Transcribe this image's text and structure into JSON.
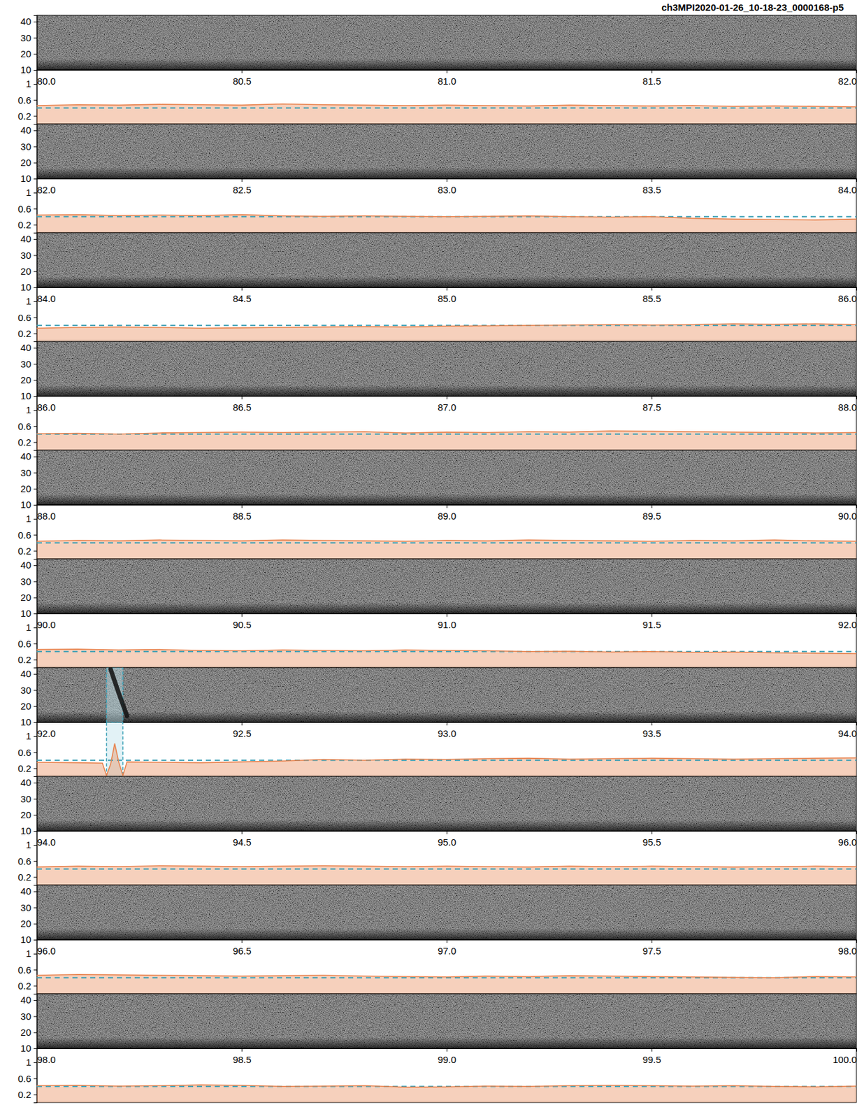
{
  "chart_data": [
    {
      "type": "line",
      "title": "ch3MPI2020-01-26_10-18-23_0000168-p5",
      "xlim": [
        80,
        82
      ],
      "xticks": [
        {
          "value": 80,
          "label": "80.0"
        },
        {
          "value": 80.5,
          "label": "80.5"
        },
        {
          "value": 81,
          "label": "81.0"
        },
        {
          "value": 81.5,
          "label": "81.5"
        },
        {
          "value": 82,
          "label": "82.0"
        }
      ],
      "ylim": [
        0,
        1.35
      ],
      "yticks": [
        0.2,
        0.6,
        1
      ],
      "spectrogram_ylim": [
        10,
        44
      ],
      "spectrogram_yticks": [
        10,
        20,
        30,
        40
      ],
      "threshold": 0.4,
      "x": [
        80,
        80.1,
        80.2,
        80.3,
        80.4,
        80.5,
        80.6,
        80.7,
        80.8,
        80.9,
        81,
        81.1,
        81.2,
        81.3,
        81.4,
        81.5,
        81.6,
        81.7,
        81.8,
        81.9,
        82
      ],
      "series": [
        {
          "color": "#e8834e",
          "values": [
            0.46,
            0.48,
            0.47,
            0.49,
            0.48,
            0.47,
            0.5,
            0.48,
            0.47,
            0.46,
            0.47,
            0.46,
            0.45,
            0.47,
            0.46,
            0.45,
            0.46,
            0.44,
            0.45,
            0.44,
            0.43
          ]
        }
      ]
    },
    {
      "type": "line",
      "xlim": [
        82,
        84
      ],
      "xticks": [
        {
          "value": 82,
          "label": "82.0"
        },
        {
          "value": 82.5,
          "label": "82.5"
        },
        {
          "value": 83,
          "label": "83.0"
        },
        {
          "value": 83.5,
          "label": "83.5"
        },
        {
          "value": 84,
          "label": "84.0"
        }
      ],
      "ylim": [
        0,
        1.35
      ],
      "yticks": [
        0.2,
        0.6,
        1
      ],
      "spectrogram_ylim": [
        10,
        44
      ],
      "spectrogram_yticks": [
        10,
        20,
        30,
        40
      ],
      "threshold": 0.4,
      "x": [
        82,
        82.1,
        82.2,
        82.3,
        82.4,
        82.5,
        82.6,
        82.7,
        82.8,
        82.9,
        83,
        83.1,
        83.2,
        83.3,
        83.4,
        83.5,
        83.6,
        83.7,
        83.8,
        83.9,
        84
      ],
      "series": [
        {
          "color": "#e8834e",
          "values": [
            0.44,
            0.45,
            0.43,
            0.44,
            0.43,
            0.45,
            0.42,
            0.41,
            0.42,
            0.41,
            0.4,
            0.41,
            0.42,
            0.4,
            0.39,
            0.4,
            0.36,
            0.34,
            0.33,
            0.32,
            0.34
          ]
        }
      ]
    },
    {
      "type": "line",
      "xlim": [
        84,
        86
      ],
      "xticks": [
        {
          "value": 84,
          "label": "84.0"
        },
        {
          "value": 84.5,
          "label": "84.5"
        },
        {
          "value": 85,
          "label": "85.0"
        },
        {
          "value": 85.5,
          "label": "85.5"
        },
        {
          "value": 86,
          "label": "86.0"
        }
      ],
      "ylim": [
        0,
        1.35
      ],
      "yticks": [
        0.2,
        0.6,
        1
      ],
      "spectrogram_ylim": [
        10,
        44
      ],
      "spectrogram_yticks": [
        10,
        20,
        30,
        40
      ],
      "threshold": 0.4,
      "x": [
        84,
        84.1,
        84.2,
        84.3,
        84.4,
        84.5,
        84.6,
        84.7,
        84.8,
        84.9,
        85,
        85.1,
        85.2,
        85.3,
        85.4,
        85.5,
        85.6,
        85.7,
        85.8,
        85.9,
        86
      ],
      "series": [
        {
          "color": "#e8834e",
          "values": [
            0.33,
            0.35,
            0.36,
            0.35,
            0.33,
            0.34,
            0.35,
            0.36,
            0.37,
            0.36,
            0.38,
            0.39,
            0.4,
            0.41,
            0.42,
            0.41,
            0.42,
            0.44,
            0.43,
            0.44,
            0.42
          ]
        }
      ]
    },
    {
      "type": "line",
      "xlim": [
        86,
        88
      ],
      "xticks": [
        {
          "value": 86,
          "label": "86.0"
        },
        {
          "value": 86.5,
          "label": "86.5"
        },
        {
          "value": 87,
          "label": "87.0"
        },
        {
          "value": 87.5,
          "label": "87.5"
        },
        {
          "value": 88,
          "label": "88.0"
        }
      ],
      "ylim": [
        0,
        1.35
      ],
      "yticks": [
        0.2,
        0.6,
        1
      ],
      "spectrogram_ylim": [
        10,
        44
      ],
      "spectrogram_yticks": [
        10,
        20,
        30,
        40
      ],
      "threshold": 0.4,
      "x": [
        86,
        86.1,
        86.2,
        86.3,
        86.4,
        86.5,
        86.6,
        86.7,
        86.8,
        86.9,
        87,
        87.1,
        87.2,
        87.3,
        87.4,
        87.5,
        87.6,
        87.7,
        87.8,
        87.9,
        88
      ],
      "series": [
        {
          "color": "#e8834e",
          "values": [
            0.41,
            0.42,
            0.4,
            0.43,
            0.44,
            0.45,
            0.44,
            0.45,
            0.46,
            0.43,
            0.45,
            0.44,
            0.46,
            0.45,
            0.48,
            0.47,
            0.46,
            0.45,
            0.44,
            0.43,
            0.44
          ]
        }
      ]
    },
    {
      "type": "line",
      "xlim": [
        88,
        90
      ],
      "xticks": [
        {
          "value": 88,
          "label": "88.0"
        },
        {
          "value": 88.5,
          "label": "88.5"
        },
        {
          "value": 89,
          "label": "89.0"
        },
        {
          "value": 89.5,
          "label": "89.5"
        },
        {
          "value": 90,
          "label": "90.0"
        }
      ],
      "ylim": [
        0,
        1.35
      ],
      "yticks": [
        0.2,
        0.6,
        1
      ],
      "spectrogram_ylim": [
        10,
        44
      ],
      "spectrogram_yticks": [
        10,
        20,
        30,
        40
      ],
      "threshold": 0.4,
      "x": [
        88,
        88.1,
        88.2,
        88.3,
        88.4,
        88.5,
        88.6,
        88.7,
        88.8,
        88.9,
        89,
        89.1,
        89.2,
        89.3,
        89.4,
        89.5,
        89.6,
        89.7,
        89.8,
        89.9,
        90
      ],
      "series": [
        {
          "color": "#e8834e",
          "values": [
            0.44,
            0.46,
            0.45,
            0.47,
            0.46,
            0.45,
            0.47,
            0.46,
            0.45,
            0.44,
            0.46,
            0.45,
            0.47,
            0.46,
            0.45,
            0.44,
            0.46,
            0.45,
            0.47,
            0.45,
            0.44
          ]
        }
      ]
    },
    {
      "type": "line",
      "xlim": [
        90,
        92
      ],
      "xticks": [
        {
          "value": 90,
          "label": "90.0"
        },
        {
          "value": 90.5,
          "label": "90.5"
        },
        {
          "value": 91,
          "label": "91.0"
        },
        {
          "value": 91.5,
          "label": "91.5"
        },
        {
          "value": 92,
          "label": "92.0"
        }
      ],
      "ylim": [
        0,
        1.35
      ],
      "yticks": [
        0.2,
        0.6,
        1
      ],
      "spectrogram_ylim": [
        10,
        44
      ],
      "spectrogram_yticks": [
        10,
        20,
        30,
        40
      ],
      "threshold": 0.4,
      "x": [
        90,
        90.1,
        90.2,
        90.3,
        90.4,
        90.5,
        90.6,
        90.7,
        90.8,
        90.9,
        91,
        91.1,
        91.2,
        91.3,
        91.4,
        91.5,
        91.6,
        91.7,
        91.8,
        91.9,
        92
      ],
      "series": [
        {
          "color": "#e8834e",
          "values": [
            0.45,
            0.46,
            0.44,
            0.45,
            0.43,
            0.42,
            0.44,
            0.43,
            0.42,
            0.44,
            0.43,
            0.42,
            0.4,
            0.41,
            0.39,
            0.4,
            0.38,
            0.39,
            0.37,
            0.36,
            0.35
          ]
        }
      ]
    },
    {
      "type": "line",
      "xlim": [
        92,
        94
      ],
      "xticks": [
        {
          "value": 92,
          "label": "92.0"
        },
        {
          "value": 92.5,
          "label": "92.5"
        },
        {
          "value": 93,
          "label": "93.0"
        },
        {
          "value": 93.5,
          "label": "93.5"
        },
        {
          "value": 94,
          "label": "94.0"
        }
      ],
      "ylim": [
        0,
        1.35
      ],
      "yticks": [
        0.2,
        0.6,
        1
      ],
      "spectrogram_ylim": [
        10,
        44
      ],
      "spectrogram_yticks": [
        10,
        20,
        30,
        40
      ],
      "threshold": 0.4,
      "detections": [
        {
          "start": 92.17,
          "end": 92.21
        }
      ],
      "calls": [
        {
          "x": [
            92.18,
            92.2,
            92.22
          ],
          "y": [
            43,
            28,
            14
          ]
        }
      ],
      "x": [
        92,
        92.1,
        92.16,
        92.17,
        92.18,
        92.19,
        92.2,
        92.21,
        92.22,
        92.3,
        92.4,
        92.5,
        92.6,
        92.7,
        92.8,
        92.9,
        93,
        93.1,
        93.2,
        93.3,
        93.4,
        93.5,
        93.6,
        93.7,
        93.8,
        93.9,
        94
      ],
      "series": [
        {
          "color": "#e8834e",
          "values": [
            0.35,
            0.34,
            0.33,
            0.02,
            0.3,
            0.82,
            0.35,
            0.02,
            0.36,
            0.35,
            0.34,
            0.36,
            0.38,
            0.42,
            0.4,
            0.43,
            0.42,
            0.44,
            0.45,
            0.43,
            0.44,
            0.45,
            0.44,
            0.43,
            0.44,
            0.45,
            0.46
          ]
        }
      ]
    },
    {
      "type": "line",
      "xlim": [
        94,
        96
      ],
      "xticks": [
        {
          "value": 94,
          "label": "94.0"
        },
        {
          "value": 94.5,
          "label": "94.5"
        },
        {
          "value": 95,
          "label": "95.0"
        },
        {
          "value": 95.5,
          "label": "95.5"
        },
        {
          "value": 96,
          "label": "96.0"
        }
      ],
      "ylim": [
        0,
        1.35
      ],
      "yticks": [
        0.2,
        0.6,
        1
      ],
      "spectrogram_ylim": [
        10,
        44
      ],
      "spectrogram_yticks": [
        10,
        20,
        30,
        40
      ],
      "threshold": 0.4,
      "x": [
        94,
        94.1,
        94.2,
        94.3,
        94.4,
        94.5,
        94.6,
        94.7,
        94.8,
        94.9,
        95,
        95.1,
        95.2,
        95.3,
        95.4,
        95.5,
        95.6,
        95.7,
        95.8,
        95.9,
        96
      ],
      "series": [
        {
          "color": "#e8834e",
          "values": [
            0.45,
            0.47,
            0.46,
            0.48,
            0.47,
            0.46,
            0.47,
            0.48,
            0.47,
            0.46,
            0.47,
            0.46,
            0.45,
            0.47,
            0.46,
            0.47,
            0.46,
            0.45,
            0.46,
            0.47,
            0.46
          ]
        }
      ]
    },
    {
      "type": "line",
      "xlim": [
        96,
        98
      ],
      "xticks": [
        {
          "value": 96,
          "label": "96.0"
        },
        {
          "value": 96.5,
          "label": "96.5"
        },
        {
          "value": 97,
          "label": "97.0"
        },
        {
          "value": 97.5,
          "label": "97.5"
        },
        {
          "value": 98,
          "label": "98.0"
        }
      ],
      "ylim": [
        0,
        1.35
      ],
      "yticks": [
        0.2,
        0.6,
        1
      ],
      "spectrogram_ylim": [
        10,
        44
      ],
      "spectrogram_yticks": [
        10,
        20,
        30,
        40
      ],
      "threshold": 0.4,
      "x": [
        96,
        96.1,
        96.2,
        96.3,
        96.4,
        96.5,
        96.6,
        96.7,
        96.8,
        96.9,
        97,
        97.1,
        97.2,
        97.3,
        97.4,
        97.5,
        97.6,
        97.7,
        97.8,
        97.9,
        98
      ],
      "series": [
        {
          "color": "#e8834e",
          "values": [
            0.46,
            0.48,
            0.47,
            0.46,
            0.45,
            0.44,
            0.45,
            0.46,
            0.44,
            0.43,
            0.42,
            0.44,
            0.43,
            0.45,
            0.44,
            0.43,
            0.42,
            0.41,
            0.4,
            0.43,
            0.42
          ]
        }
      ]
    },
    {
      "type": "line",
      "xlim": [
        98,
        100
      ],
      "xticks": [
        {
          "value": 98,
          "label": "98.0"
        },
        {
          "value": 98.5,
          "label": "98.5"
        },
        {
          "value": 99,
          "label": "99.0"
        },
        {
          "value": 99.5,
          "label": "99.5"
        },
        {
          "value": 100,
          "label": "100.0"
        }
      ],
      "ylim": [
        0,
        1.35
      ],
      "yticks": [
        0.2,
        0.6,
        1
      ],
      "spectrogram_ylim": [
        10,
        44
      ],
      "spectrogram_yticks": [
        10,
        20,
        30,
        40
      ],
      "threshold": 0.4,
      "x": [
        98,
        98.1,
        98.2,
        98.3,
        98.4,
        98.5,
        98.6,
        98.7,
        98.8,
        98.9,
        99,
        99.1,
        99.2,
        99.3,
        99.4,
        99.5,
        99.6,
        99.7,
        99.8,
        99.9,
        100
      ],
      "series": [
        {
          "color": "#e8834e",
          "values": [
            0.42,
            0.43,
            0.41,
            0.42,
            0.44,
            0.43,
            0.4,
            0.41,
            0.42,
            0.38,
            0.39,
            0.41,
            0.4,
            0.42,
            0.43,
            0.42,
            0.41,
            0.42,
            0.4,
            0.39,
            0.41
          ]
        }
      ]
    }
  ]
}
